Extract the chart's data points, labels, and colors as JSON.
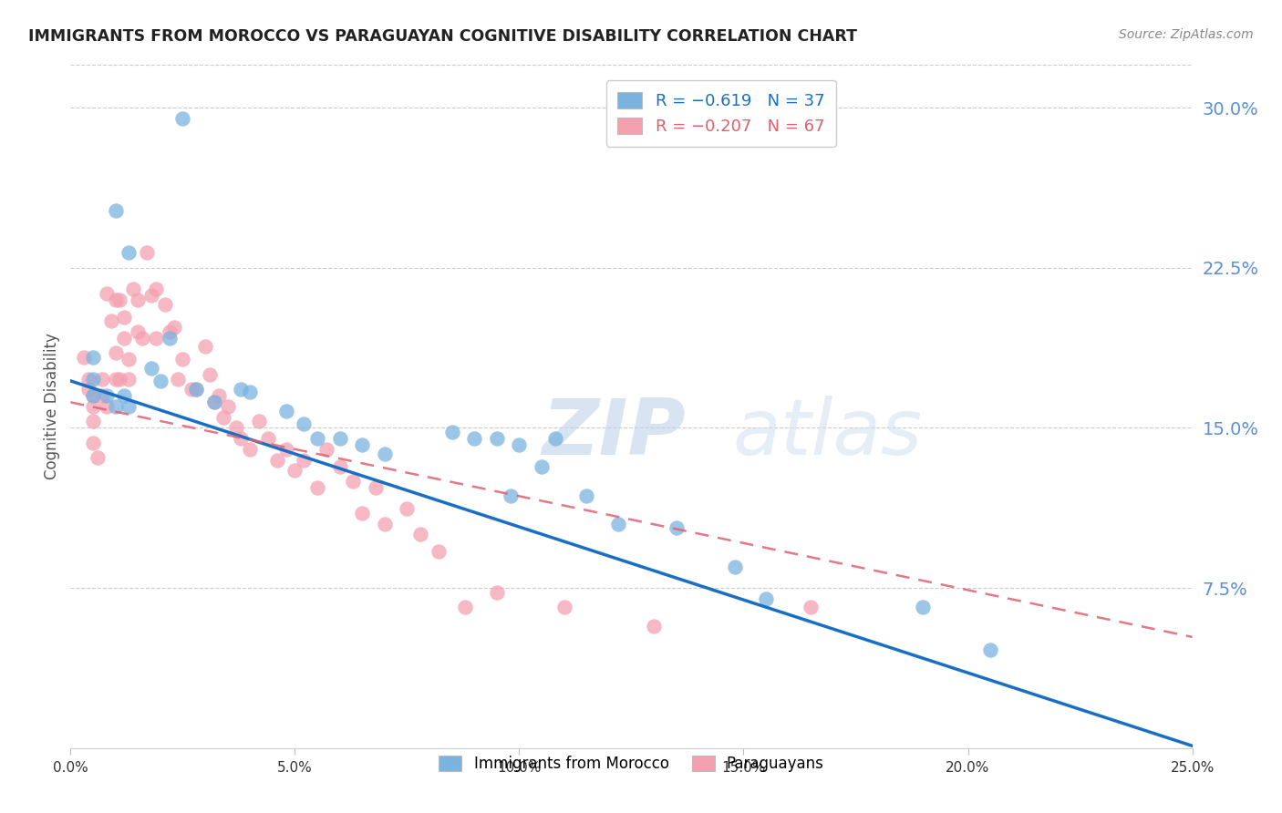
{
  "title": "IMMIGRANTS FROM MOROCCO VS PARAGUAYAN COGNITIVE DISABILITY CORRELATION CHART",
  "source": "Source: ZipAtlas.com",
  "ylabel": "Cognitive Disability",
  "right_yticks": [
    "30.0%",
    "22.5%",
    "15.0%",
    "7.5%"
  ],
  "right_ytick_vals": [
    0.3,
    0.225,
    0.15,
    0.075
  ],
  "legend_blue_r": "R = −0.619",
  "legend_blue_n": "N = 37",
  "legend_pink_r": "R = −0.207",
  "legend_pink_n": "N = 67",
  "blue_color": "#7ab3e0",
  "pink_color": "#f4a0b0",
  "blue_line_color": "#1a6fc4",
  "pink_line_color": "#e06070",
  "background_color": "#ffffff",
  "grid_color": "#cccccc",
  "axis_label_color": "#5a8fd8",
  "watermark_color": "#c8d8f0",
  "xlim": [
    0.0,
    0.25
  ],
  "ylim": [
    0.0,
    0.32
  ],
  "blue_line_x0": 0.0,
  "blue_line_y0": 0.172,
  "blue_line_x1": 0.25,
  "blue_line_y1": 0.001,
  "pink_line_x0": 0.0,
  "pink_line_y0": 0.162,
  "pink_line_x1": 0.25,
  "pink_line_y1": 0.052,
  "blue_scatter_x": [
    0.025,
    0.01,
    0.013,
    0.005,
    0.005,
    0.005,
    0.008,
    0.01,
    0.012,
    0.013,
    0.018,
    0.02,
    0.022,
    0.028,
    0.032,
    0.038,
    0.04,
    0.048,
    0.052,
    0.055,
    0.06,
    0.065,
    0.07,
    0.085,
    0.09,
    0.095,
    0.098,
    0.1,
    0.105,
    0.108,
    0.115,
    0.122,
    0.135,
    0.148,
    0.155,
    0.19,
    0.205
  ],
  "blue_scatter_y": [
    0.295,
    0.252,
    0.232,
    0.183,
    0.173,
    0.165,
    0.165,
    0.16,
    0.165,
    0.16,
    0.178,
    0.172,
    0.192,
    0.168,
    0.162,
    0.168,
    0.167,
    0.158,
    0.152,
    0.145,
    0.145,
    0.142,
    0.138,
    0.148,
    0.145,
    0.145,
    0.118,
    0.142,
    0.132,
    0.145,
    0.118,
    0.105,
    0.103,
    0.085,
    0.07,
    0.066,
    0.046
  ],
  "pink_scatter_x": [
    0.003,
    0.004,
    0.004,
    0.005,
    0.005,
    0.005,
    0.005,
    0.006,
    0.007,
    0.007,
    0.008,
    0.008,
    0.009,
    0.01,
    0.01,
    0.01,
    0.011,
    0.011,
    0.012,
    0.012,
    0.013,
    0.013,
    0.014,
    0.015,
    0.015,
    0.016,
    0.017,
    0.018,
    0.019,
    0.019,
    0.021,
    0.022,
    0.023,
    0.024,
    0.025,
    0.027,
    0.028,
    0.03,
    0.031,
    0.032,
    0.033,
    0.034,
    0.035,
    0.037,
    0.038,
    0.04,
    0.042,
    0.044,
    0.046,
    0.048,
    0.05,
    0.052,
    0.055,
    0.057,
    0.06,
    0.063,
    0.065,
    0.068,
    0.07,
    0.075,
    0.078,
    0.082,
    0.088,
    0.095,
    0.11,
    0.13,
    0.165
  ],
  "pink_scatter_y": [
    0.183,
    0.173,
    0.168,
    0.165,
    0.16,
    0.153,
    0.143,
    0.136,
    0.173,
    0.165,
    0.16,
    0.213,
    0.2,
    0.173,
    0.21,
    0.185,
    0.173,
    0.21,
    0.202,
    0.192,
    0.182,
    0.173,
    0.215,
    0.195,
    0.21,
    0.192,
    0.232,
    0.212,
    0.215,
    0.192,
    0.208,
    0.195,
    0.197,
    0.173,
    0.182,
    0.168,
    0.168,
    0.188,
    0.175,
    0.162,
    0.165,
    0.155,
    0.16,
    0.15,
    0.145,
    0.14,
    0.153,
    0.145,
    0.135,
    0.14,
    0.13,
    0.135,
    0.122,
    0.14,
    0.132,
    0.125,
    0.11,
    0.122,
    0.105,
    0.112,
    0.1,
    0.092,
    0.066,
    0.073,
    0.066,
    0.057,
    0.066
  ]
}
